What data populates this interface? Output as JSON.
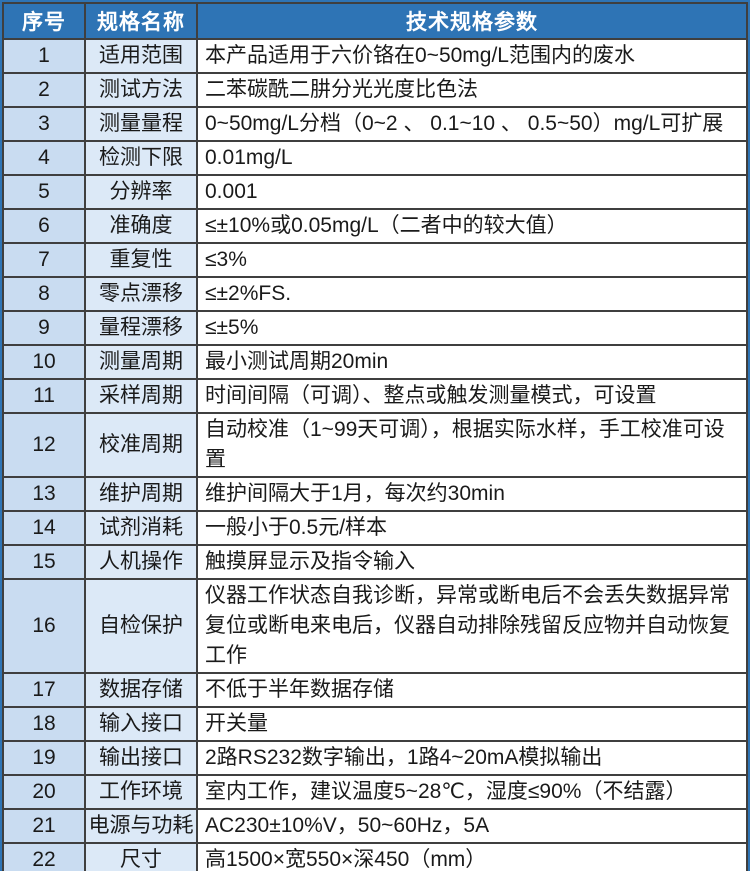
{
  "table": {
    "headers": [
      "序号",
      "规格名称",
      "技术规格参数"
    ],
    "rows": [
      {
        "no": "1",
        "name": "适用范围",
        "value": "本产品适用于六价铬在0~50mg/L范围内的废水"
      },
      {
        "no": "2",
        "name": "测试方法",
        "value": "二苯碳酰二肼分光光度比色法"
      },
      {
        "no": "3",
        "name": "测量量程",
        "value": "0~50mg/L分档（0~2 、 0.1~10 、 0.5~50）mg/L可扩展"
      },
      {
        "no": "4",
        "name": "检测下限",
        "value": "0.01mg/L"
      },
      {
        "no": "5",
        "name": "分辨率",
        "value": "0.001"
      },
      {
        "no": "6",
        "name": "准确度",
        "value": "≤±10%或0.05mg/L（二者中的较大值）"
      },
      {
        "no": "7",
        "name": "重复性",
        "value": "≤3%"
      },
      {
        "no": "8",
        "name": "零点漂移",
        "value": "≤±2%FS."
      },
      {
        "no": "9",
        "name": "量程漂移",
        "value": "≤±5%"
      },
      {
        "no": "10",
        "name": "测量周期",
        "value": "最小测试周期20min"
      },
      {
        "no": "11",
        "name": "采样周期",
        "value": "时间间隔（可调）、整点或触发测量模式，可设置"
      },
      {
        "no": "12",
        "name": "校准周期",
        "value": "自动校准（1~99天可调），根据实际水样，手工校准可设置"
      },
      {
        "no": "13",
        "name": "维护周期",
        "value": "维护间隔大于1月，每次约30min"
      },
      {
        "no": "14",
        "name": "试剂消耗",
        "value": "一般小于0.5元/样本"
      },
      {
        "no": "15",
        "name": "人机操作",
        "value": "触摸屏显示及指令输入"
      },
      {
        "no": "16",
        "name": "自检保护",
        "value": "仪器工作状态自我诊断，异常或断电后不会丢失数据异常复位或断电来电后，仪器自动排除残留反应物并自动恢复工作"
      },
      {
        "no": "17",
        "name": "数据存储",
        "value": "不低于半年数据存储"
      },
      {
        "no": "18",
        "name": "输入接口",
        "value": "开关量"
      },
      {
        "no": "19",
        "name": "输出接口",
        "value": "2路RS232数字输出，1路4~20mA模拟输出"
      },
      {
        "no": "20",
        "name": "工作环境",
        "value": "室内工作，建议温度5~28℃，湿度≤90%（不结露）"
      },
      {
        "no": "21",
        "name": "电源与功耗",
        "value": "AC230±10%V，50~60Hz，5A"
      },
      {
        "no": "22",
        "name": "尺寸",
        "value": "高1500×宽550×深450（mm）"
      }
    ]
  },
  "colors": {
    "header_bg": "#2e74b5",
    "header_text": "#ffffff",
    "serial_col_bg": "#c9dcf1",
    "name_col_bg": "#dce9f7",
    "value_col_bg": "#ffffff",
    "grid_border": "#3f3f3f",
    "outer_border": "#2e74b5",
    "body_text": "#1a1a1a"
  }
}
